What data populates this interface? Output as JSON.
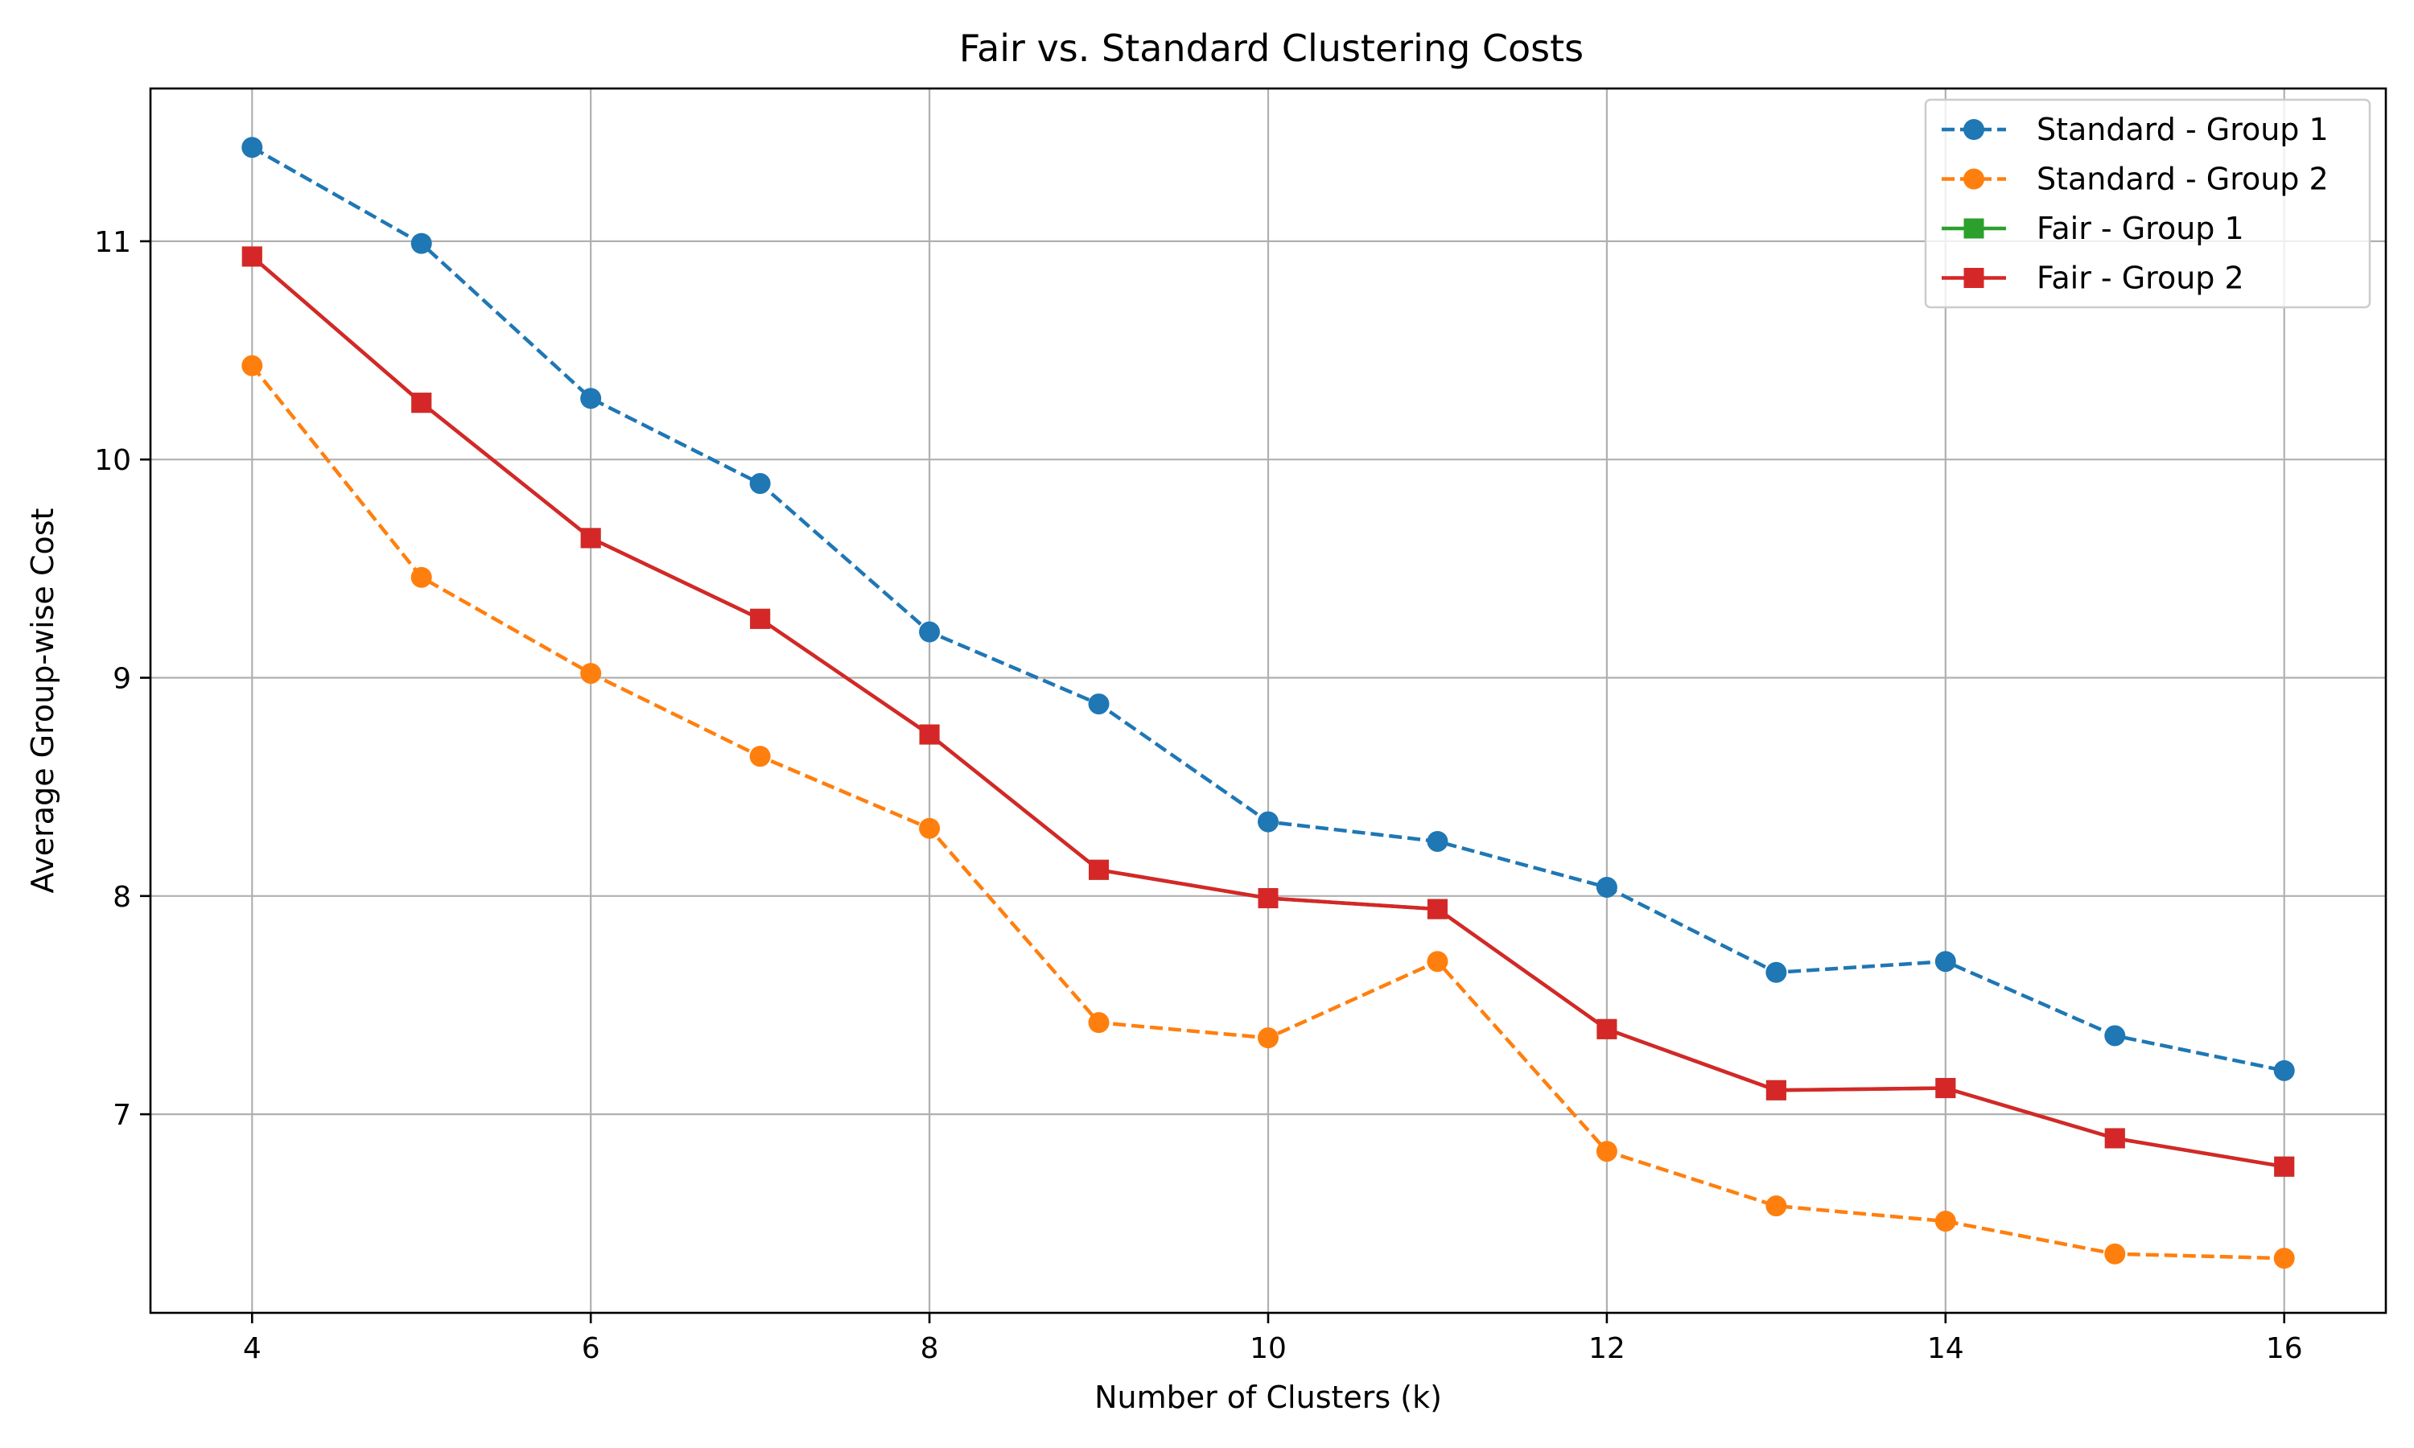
{
  "chart_data": {
    "type": "line",
    "title": "Fair vs. Standard Clustering Costs",
    "xlabel": "Number of Clusters (k)",
    "ylabel": "Average Group-wise Cost",
    "xlim": [
      3.4,
      16.6
    ],
    "ylim": [
      6.09,
      11.7
    ],
    "xticks": [
      4,
      6,
      8,
      10,
      12,
      14,
      16
    ],
    "yticks": [
      7,
      8,
      9,
      10,
      11
    ],
    "grid": true,
    "legend_position": "top-right",
    "x": [
      4,
      5,
      6,
      7,
      8,
      9,
      10,
      11,
      12,
      13,
      14,
      15,
      16
    ],
    "series": [
      {
        "name": "Standard - Group 1",
        "color": "#1f77b4",
        "linestyle": "dashed",
        "marker": "circle",
        "values": [
          11.43,
          10.99,
          10.28,
          9.89,
          9.21,
          8.88,
          8.34,
          8.25,
          8.04,
          7.65,
          7.7,
          7.36,
          7.2
        ]
      },
      {
        "name": "Standard - Group 2",
        "color": "#ff7f0e",
        "linestyle": "dashed",
        "marker": "circle",
        "values": [
          10.43,
          9.46,
          9.02,
          8.64,
          8.31,
          7.42,
          7.35,
          7.7,
          6.83,
          6.58,
          6.51,
          6.36,
          6.34
        ]
      },
      {
        "name": "Fair - Group 1",
        "color": "#2ca02c",
        "linestyle": "solid",
        "marker": "square",
        "values": [
          10.93,
          10.26,
          9.64,
          9.27,
          8.74,
          8.12,
          7.99,
          7.94,
          7.39,
          7.11,
          7.12,
          6.89,
          6.76
        ]
      },
      {
        "name": "Fair - Group 2",
        "color": "#d62728",
        "linestyle": "solid",
        "marker": "square",
        "values": [
          10.93,
          10.26,
          9.64,
          9.27,
          8.74,
          8.12,
          7.99,
          7.94,
          7.39,
          7.11,
          7.12,
          6.89,
          6.76
        ]
      }
    ]
  }
}
